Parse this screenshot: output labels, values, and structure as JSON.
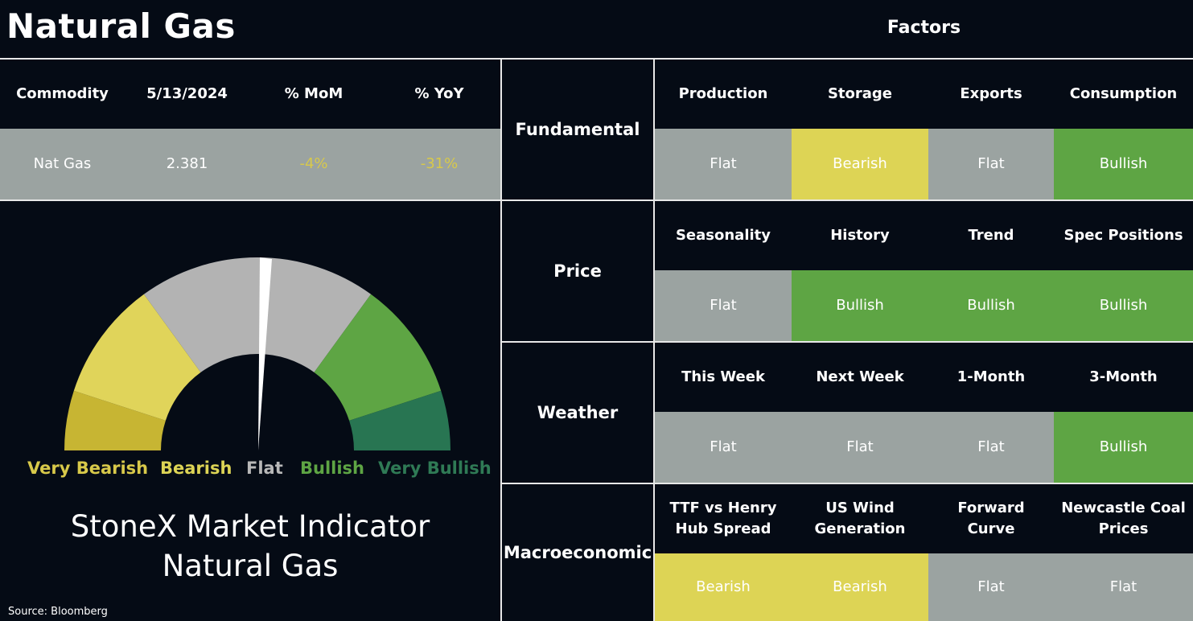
{
  "header": {
    "title": "Natural Gas",
    "factors_title": "Factors"
  },
  "summary_table": {
    "columns": [
      "Commodity",
      "5/13/2024",
      "% MoM",
      "% YoY"
    ],
    "row": {
      "commodity": "Nat Gas",
      "value": "2.381",
      "mom": "-4%",
      "yoy": "-31%"
    }
  },
  "gauge": {
    "labels": [
      "Very Bearish",
      "Bearish",
      "Flat",
      "Bullish",
      "Very Bullish"
    ],
    "label_colors": [
      "#d8c94a",
      "#ddd455",
      "#b8b8b8",
      "#5ea544",
      "#2f7a55"
    ],
    "needle_reading": "Flat"
  },
  "indicator": {
    "line1": "StoneX Market Indicator",
    "line2": "Natural Gas"
  },
  "source": "Source: Bloomberg",
  "factors": [
    {
      "category": "Fundamental",
      "items": [
        {
          "name": "Production",
          "status": "Flat"
        },
        {
          "name": "Storage",
          "status": "Bearish"
        },
        {
          "name": "Exports",
          "status": "Flat"
        },
        {
          "name": "Consumption",
          "status": "Bullish"
        }
      ]
    },
    {
      "category": "Price",
      "items": [
        {
          "name": "Seasonality",
          "status": "Flat"
        },
        {
          "name": "History",
          "status": "Bullish"
        },
        {
          "name": "Trend",
          "status": "Bullish"
        },
        {
          "name": "Spec Positions",
          "status": "Bullish"
        }
      ]
    },
    {
      "category": "Weather",
      "items": [
        {
          "name": "This Week",
          "status": "Flat"
        },
        {
          "name": "Next Week",
          "status": "Flat"
        },
        {
          "name": "1-Month",
          "status": "Flat"
        },
        {
          "name": "3-Month",
          "status": "Bullish"
        }
      ]
    },
    {
      "category": "Macroeconomic",
      "items": [
        {
          "name": "TTF vs Henry Hub Spread",
          "name_line1": "TTF vs Henry",
          "name_line2": "Hub Spread",
          "status": "Bearish"
        },
        {
          "name": "US Wind Generation",
          "name_line1": "US Wind",
          "name_line2": "Generation",
          "status": "Bearish"
        },
        {
          "name": "Forward Curve",
          "name_line1": "Forward",
          "name_line2": "Curve",
          "status": "Flat"
        },
        {
          "name": "Newcastle Coal Prices",
          "name_line1": "Newcastle Coal",
          "name_line2": "Prices",
          "status": "Flat"
        }
      ]
    }
  ],
  "colors": {
    "flat": "#9ba3a1",
    "bearish": "#ddd455",
    "bullish": "#5ea544",
    "negative_text": "#d8c94a"
  }
}
